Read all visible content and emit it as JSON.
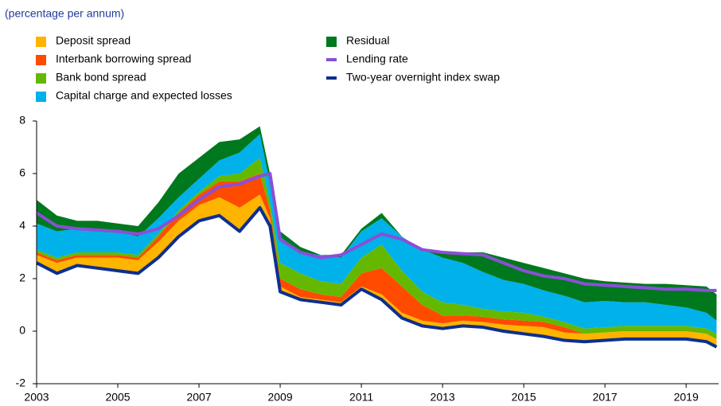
{
  "chart_data": {
    "type": "stacked-area-line",
    "subtitle": "(percentage per annum)",
    "x": [
      2003,
      2003.5,
      2004,
      2004.5,
      2005,
      2005.5,
      2006,
      2006.5,
      2007,
      2007.5,
      2008,
      2008.5,
      2008.75,
      2009,
      2009.5,
      2010,
      2010.5,
      2011,
      2011.5,
      2012,
      2012.5,
      2013,
      2013.5,
      2014,
      2014.5,
      2015,
      2015.5,
      2016,
      2016.5,
      2017,
      2017.5,
      2018,
      2018.5,
      2019,
      2019.5,
      2019.75
    ],
    "series": [
      {
        "name": "Deposit spread",
        "color": "#ffb400",
        "kind": "area",
        "values": [
          0.3,
          0.4,
          0.3,
          0.4,
          0.5,
          0.5,
          0.6,
          0.6,
          0.6,
          0.7,
          0.9,
          0.5,
          0.3,
          0.2,
          0.1,
          0.1,
          0.1,
          0.1,
          0.2,
          0.2,
          0.2,
          0.2,
          0.2,
          0.2,
          0.25,
          0.3,
          0.35,
          0.3,
          0.3,
          0.3,
          0.3,
          0.3,
          0.3,
          0.3,
          0.3,
          0.3
        ]
      },
      {
        "name": "Interbank borrowing spread",
        "color": "#ff4b00",
        "kind": "area",
        "values": [
          0.1,
          0.1,
          0.1,
          0.1,
          0.1,
          0.1,
          0.2,
          0.3,
          0.4,
          0.6,
          1.0,
          0.8,
          0.3,
          0.3,
          0.3,
          0.2,
          0.2,
          0.5,
          1.0,
          1.0,
          0.6,
          0.3,
          0.2,
          0.2,
          0.2,
          0.2,
          0.2,
          0.2,
          0,
          0,
          0,
          0,
          0,
          0,
          0,
          0
        ]
      },
      {
        "name": "Bank bond spread",
        "color": "#65b800",
        "kind": "area",
        "values": [
          0.1,
          0.1,
          0.1,
          0.1,
          0.1,
          0.1,
          0.1,
          0.1,
          0.1,
          0.2,
          0.3,
          0.6,
          0.3,
          0.6,
          0.6,
          0.5,
          0.5,
          0.6,
          0.9,
          0.6,
          0.5,
          0.5,
          0.4,
          0.3,
          0.3,
          0.3,
          0.2,
          0.2,
          0.2,
          0.2,
          0.2,
          0.2,
          0.2,
          0.2,
          0.2,
          0.2
        ]
      },
      {
        "name": "Capital charge and expected losses",
        "color": "#00b1ea",
        "kind": "area",
        "values": [
          1.0,
          1.0,
          0.9,
          0.9,
          0.8,
          0.7,
          0.6,
          0.5,
          0.5,
          0.6,
          0.8,
          0.9,
          0.7,
          1.2,
          1.0,
          1.0,
          1.0,
          1.0,
          1.0,
          1.3,
          1.6,
          1.7,
          1.6,
          1.4,
          1.2,
          1.1,
          1.0,
          1.0,
          1.0,
          1.0,
          0.9,
          0.9,
          0.8,
          0.7,
          0.6,
          0.5
        ]
      },
      {
        "name": "Residual",
        "color": "#00781e",
        "kind": "area",
        "values": [
          0.9,
          0.6,
          0.3,
          0.3,
          0.3,
          0.4,
          0.6,
          0.9,
          0.8,
          0.7,
          0.5,
          0.3,
          0.4,
          -0.2,
          -0.2,
          0,
          0.1,
          0.1,
          0.2,
          0,
          0,
          0.2,
          0.4,
          0.75,
          0.85,
          0.8,
          0.85,
          0.85,
          0.9,
          0.75,
          0.75,
          0.7,
          0.8,
          0.85,
          1.0,
          1.0
        ]
      },
      {
        "name": "Lending rate",
        "color": "#8a4fd6",
        "kind": "line",
        "values": [
          4.5,
          4.0,
          3.9,
          3.85,
          3.8,
          3.7,
          3.9,
          4.4,
          5.0,
          5.5,
          5.6,
          5.9,
          6.0,
          3.5,
          3.0,
          2.8,
          2.9,
          3.3,
          3.7,
          3.5,
          3.1,
          3.0,
          2.95,
          2.9,
          2.6,
          2.3,
          2.1,
          2.0,
          1.8,
          1.75,
          1.7,
          1.65,
          1.6,
          1.6,
          1.55,
          1.55
        ]
      },
      {
        "name": "Two-year overnight index swap",
        "color": "#0d2f8f",
        "kind": "line",
        "stack_base": true,
        "values": [
          2.6,
          2.2,
          2.5,
          2.4,
          2.3,
          2.2,
          2.8,
          3.6,
          4.2,
          4.4,
          3.8,
          4.7,
          4.0,
          1.5,
          1.2,
          1.1,
          1.0,
          1.6,
          1.2,
          0.5,
          0.2,
          0.1,
          0.2,
          0.15,
          0.0,
          -0.1,
          -0.2,
          -0.35,
          -0.4,
          -0.35,
          -0.3,
          -0.3,
          -0.3,
          -0.3,
          -0.4,
          -0.6
        ]
      }
    ],
    "xlim": [
      2003,
      2019.8
    ],
    "xticks": [
      2003,
      2005,
      2007,
      2009,
      2011,
      2013,
      2015,
      2017,
      2019
    ],
    "ylim": [
      -2,
      8
    ],
    "yticks": [
      -2,
      0,
      2,
      4,
      6,
      8
    ],
    "grid": false
  }
}
